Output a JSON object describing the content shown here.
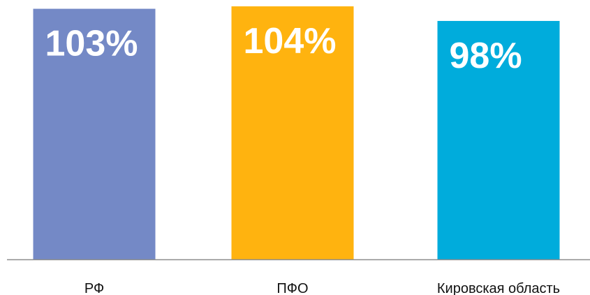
{
  "chart_data": {
    "type": "bar",
    "title": "",
    "xlabel": "",
    "ylabel": "",
    "categories": [
      "РФ",
      "ПФО",
      "Кировская область"
    ],
    "values": [
      103,
      104,
      98
    ],
    "value_labels": [
      "103%",
      "104%",
      "98%"
    ],
    "unit": "%",
    "colors": [
      "#7489c6",
      "#ffb30f",
      "#00acdc"
    ],
    "axis_color": "#8c8c8c",
    "ylim": [
      0,
      105
    ],
    "grid": false,
    "legend": "none"
  }
}
